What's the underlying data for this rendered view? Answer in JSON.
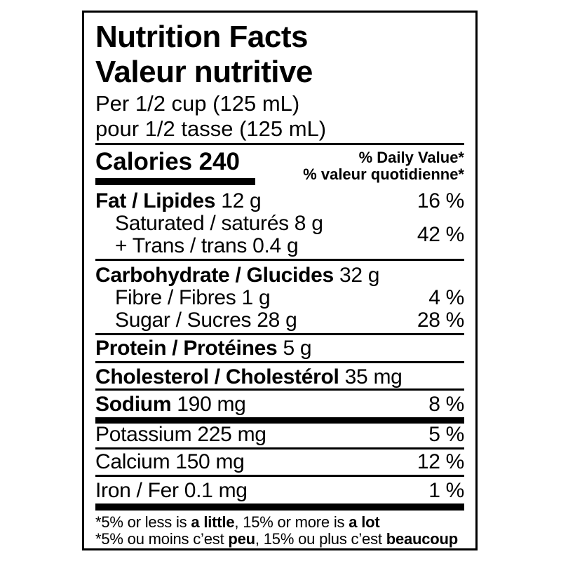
{
  "colors": {
    "text": "#000000",
    "background": "#ffffff",
    "border": "#000000"
  },
  "label": {
    "title_en": "Nutrition Facts",
    "title_fr": "Valeur nutritive",
    "serving_en": "Per 1/2 cup (125 mL)",
    "serving_fr": "pour 1/2 tasse (125 mL)",
    "calories": {
      "label": "Calories",
      "value": "240"
    },
    "dv_header_en": "% Daily Value*",
    "dv_header_fr": "% valeur quotidienne*",
    "nutrients": {
      "fat": {
        "name": "Fat / Lipides",
        "amount": "12 g",
        "dv": "16 %"
      },
      "sat_trans": {
        "line1": "Saturated / saturés 8 g",
        "line2": "+ Trans / trans 0.4 g",
        "dv": "42 %"
      },
      "carbohydrate": {
        "name": "Carbohydrate / Glucides",
        "amount": "32 g"
      },
      "fibre": {
        "text": "Fibre / Fibres 1 g",
        "dv": "4 %"
      },
      "sugar": {
        "text": "Sugar / Sucres 28 g",
        "dv": "28 %"
      },
      "protein": {
        "name": "Protein / Protéines",
        "amount": "5 g"
      },
      "cholesterol": {
        "name": "Cholesterol / Cholestérol",
        "amount": "35 mg"
      },
      "sodium": {
        "name": "Sodium",
        "amount": "190 mg",
        "dv": "8 %"
      },
      "potassium": {
        "text": "Potassium 225 mg",
        "dv": "5 %"
      },
      "calcium": {
        "text": "Calcium 150 mg",
        "dv": "12 %"
      },
      "iron": {
        "text": "Iron / Fer 0.1 mg",
        "dv": "1 %"
      }
    },
    "footnote_en": {
      "p1": "*5% or less is ",
      "b1": "a little",
      "p2": ", 15% or more is ",
      "b2": "a lot"
    },
    "footnote_fr": {
      "p1": "*5% ou moins c’est ",
      "b1": "peu",
      "p2": ", 15% ou plus c’est ",
      "b2": "beaucoup"
    }
  }
}
